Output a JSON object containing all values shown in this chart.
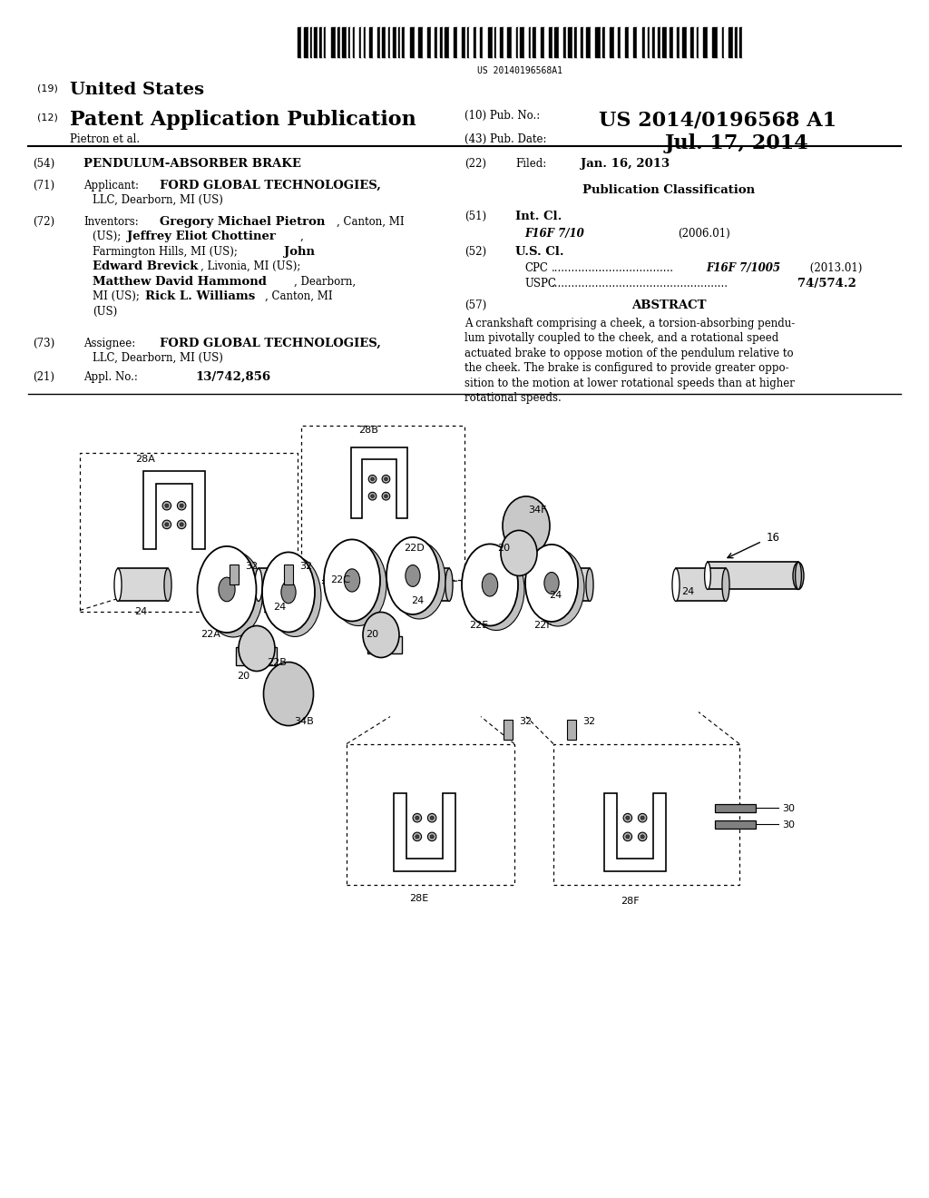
{
  "bg_color": "#ffffff",
  "barcode_text": "US 20140196568A1",
  "country_label": "(19)",
  "country_name": "United States",
  "pub_type_label": "(12)",
  "pub_type_name": "Patent Application Publication",
  "pub_no_label": "(10) Pub. No.:",
  "pub_no_value": "US 2014/0196568 A1",
  "pub_date_label": "(43) Pub. Date:",
  "pub_date_value": "Jul. 17, 2014",
  "inventor_line": "Pietron et al.",
  "title_label": "(54)",
  "title_value": "PENDULUM-ABSORBER BRAKE",
  "applicant_label": "(71)",
  "applicant_key": "Applicant:",
  "applicant_value_line1": "FORD GLOBAL TECHNOLOGIES,",
  "applicant_value_line2": "LLC, Dearborn, MI (US)",
  "inventors_label": "(72)",
  "inventors_key": "Inventors:",
  "assignee_label": "(73)",
  "assignee_key": "Assignee:",
  "assignee_value_line1": "FORD GLOBAL TECHNOLOGIES,",
  "assignee_value_line2": "LLC, Dearborn, MI (US)",
  "appl_label": "(21)",
  "appl_key": "Appl. No.:",
  "appl_value": "13/742,856",
  "filed_label": "(22)",
  "filed_key": "Filed:",
  "filed_value": "Jan. 16, 2013",
  "pub_class_title": "Publication Classification",
  "int_cl_label": "(51)",
  "int_cl_key": "Int. Cl.",
  "int_cl_class": "F16F 7/10",
  "int_cl_year": "(2006.01)",
  "us_cl_label": "(52)",
  "us_cl_key": "U.S. Cl.",
  "cpc_value": "F16F 7/1005",
  "cpc_year": "(2013.01)",
  "uspc_value": "74/574.2",
  "abstract_label": "(57)",
  "abstract_title": "ABSTRACT",
  "abstract_lines": [
    "A crankshaft comprising a cheek, a torsion-absorbing pendu-",
    "lum pivotally coupled to the cheek, and a rotational speed",
    "actuated brake to oppose motion of the pendulum relative to",
    "the cheek. The brake is configured to provide greater oppo-",
    "sition to the motion at lower rotational speeds than at higher",
    "rotational speeds."
  ],
  "fn": 8.5,
  "fb": 9.5,
  "fh": 14,
  "fl": 16
}
